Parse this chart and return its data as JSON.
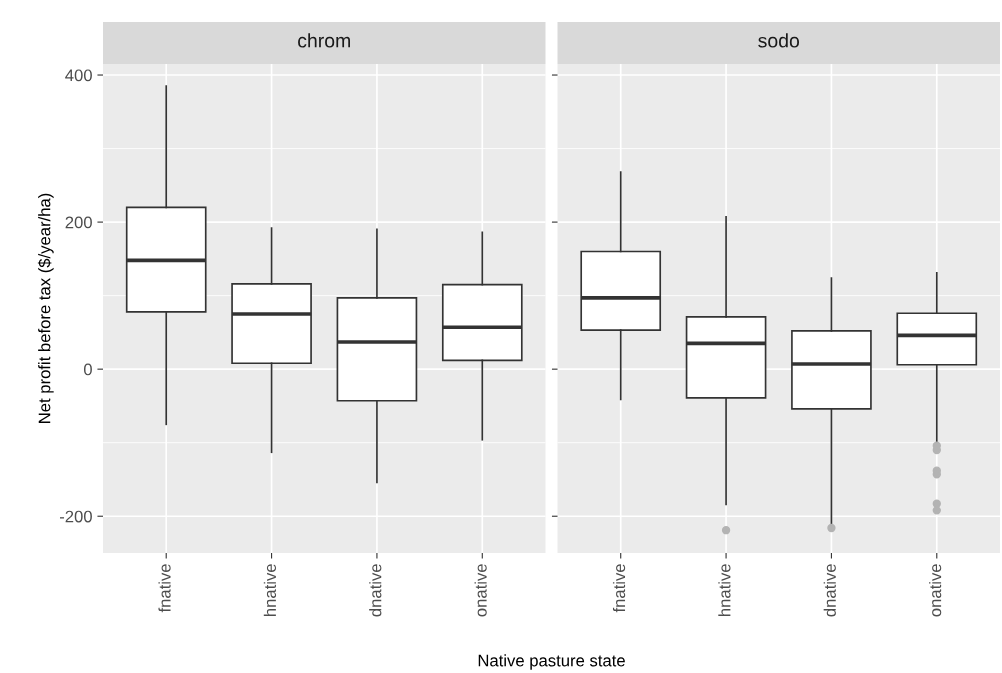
{
  "chart_data": [
    {
      "type": "box",
      "title": "chrom",
      "xlabel": "Native pasture state",
      "ylabel": "Net profit before tax ($/year/ha)",
      "categories": [
        "fnative",
        "hnative",
        "dnative",
        "onative"
      ],
      "color": "#333333",
      "ylim": [
        -250,
        415
      ],
      "yticks": [
        -200,
        0,
        200,
        400
      ],
      "grid": true,
      "boxes": [
        {
          "low": -75,
          "q1": 78,
          "median": 148,
          "q3": 220,
          "high": 385
        },
        {
          "low": -113,
          "q1": 8,
          "median": 75,
          "q3": 116,
          "high": 192
        },
        {
          "low": -154,
          "q1": -43,
          "median": 37,
          "q3": 97,
          "high": 190
        },
        {
          "low": -96,
          "q1": 12,
          "median": 57,
          "q3": 115,
          "high": 186
        }
      ]
    },
    {
      "type": "box",
      "title": "sodo",
      "categories": [
        "fnative",
        "hnative",
        "dnative",
        "onative"
      ],
      "color": "#333333",
      "ylim": [
        -250,
        415
      ],
      "yticks": [
        -200,
        0,
        200,
        400
      ],
      "grid": true,
      "tick_labels": "x",
      "boxes": [
        {
          "low": -41,
          "q1": 53,
          "median": 97,
          "q3": 160,
          "high": 268
        },
        {
          "low": -184,
          "q1": -39,
          "median": 35,
          "q3": 71,
          "high": 207,
          "outliers": [
            -219
          ]
        },
        {
          "low": -212,
          "q1": -54,
          "median": 7,
          "q3": 52,
          "high": 124,
          "outliers": [
            -216
          ]
        },
        {
          "low": -99,
          "q1": 6,
          "median": 46,
          "q3": 76,
          "high": 131,
          "outliers": [
            -104,
            -110,
            -138,
            -143,
            -183,
            -192
          ]
        }
      ]
    }
  ]
}
